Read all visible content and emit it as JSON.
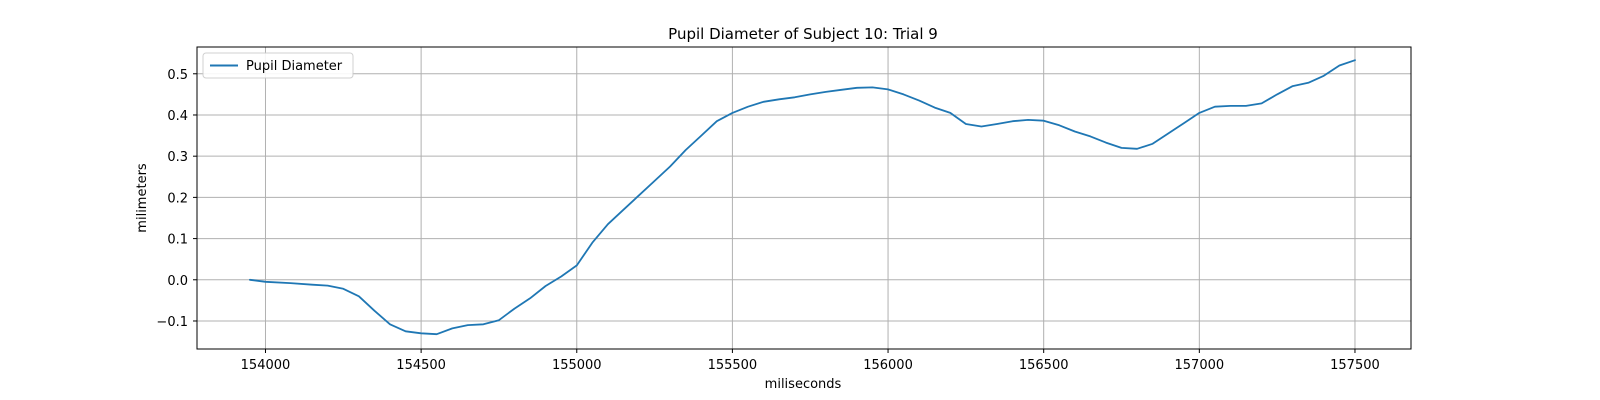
{
  "chart_data": {
    "type": "line",
    "title": "Pupil Diameter of Subject 10: Trial 9",
    "xlabel": "miliseconds",
    "ylabel": "milimeters",
    "xlim": [
      153780,
      157680
    ],
    "ylim": [
      -0.168,
      0.565
    ],
    "xticks": [
      154000,
      154500,
      155000,
      155500,
      156000,
      156500,
      157000,
      157500
    ],
    "yticks": [
      -0.1,
      0.0,
      0.1,
      0.2,
      0.3,
      0.4,
      0.5
    ],
    "xtick_labels": [
      "154000",
      "154500",
      "155000",
      "155500",
      "156000",
      "156500",
      "157000",
      "157500"
    ],
    "ytick_labels": [
      "−0.1",
      "0.0",
      "0.1",
      "0.2",
      "0.3",
      "0.4",
      "0.5"
    ],
    "grid": true,
    "legend_position": "top-left",
    "series": [
      {
        "name": "Pupil Diameter",
        "color": "#1f77b4",
        "x": [
          153950,
          154000,
          154080,
          154150,
          154200,
          154250,
          154300,
          154350,
          154400,
          154450,
          154500,
          154550,
          154600,
          154650,
          154700,
          154750,
          154800,
          154850,
          154900,
          154950,
          155000,
          155050,
          155100,
          155150,
          155200,
          155250,
          155300,
          155350,
          155400,
          155450,
          155500,
          155550,
          155600,
          155650,
          155700,
          155750,
          155800,
          155850,
          155900,
          155950,
          156000,
          156050,
          156100,
          156150,
          156200,
          156250,
          156300,
          156350,
          156400,
          156450,
          156500,
          156550,
          156600,
          156650,
          156700,
          156750,
          156800,
          156850,
          156900,
          156950,
          157000,
          157050,
          157100,
          157150,
          157200,
          157250,
          157300,
          157350,
          157400,
          157450,
          157500
        ],
        "y": [
          0.0,
          -0.005,
          -0.008,
          -0.012,
          -0.014,
          -0.022,
          -0.04,
          -0.075,
          -0.108,
          -0.125,
          -0.13,
          -0.132,
          -0.118,
          -0.11,
          -0.108,
          -0.098,
          -0.07,
          -0.045,
          -0.015,
          0.008,
          0.035,
          0.09,
          0.135,
          0.17,
          0.205,
          0.24,
          0.275,
          0.315,
          0.35,
          0.385,
          0.405,
          0.42,
          0.432,
          0.438,
          0.443,
          0.45,
          0.456,
          0.461,
          0.466,
          0.467,
          0.462,
          0.45,
          0.435,
          0.418,
          0.405,
          0.378,
          0.372,
          0.378,
          0.385,
          0.388,
          0.386,
          0.375,
          0.36,
          0.348,
          0.333,
          0.32,
          0.318,
          0.33,
          0.355,
          0.38,
          0.405,
          0.42,
          0.422,
          0.422,
          0.428,
          0.45,
          0.47,
          0.478,
          0.495,
          0.52,
          0.533
        ]
      }
    ]
  }
}
